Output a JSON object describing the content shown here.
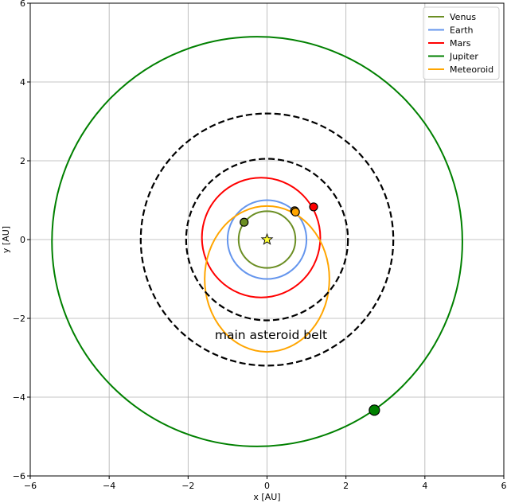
{
  "chart_data": {
    "type": "line",
    "title": "",
    "xlabel": "x [AU]",
    "ylabel": "y [AU]",
    "xlim": [
      -6,
      6
    ],
    "ylim": [
      -6,
      6
    ],
    "xticks": [
      -6,
      -4,
      -2,
      0,
      2,
      4,
      6
    ],
    "yticks": [
      -6,
      -4,
      -2,
      0,
      2,
      4,
      6
    ],
    "xtick_labels": [
      "−6",
      "−4",
      "−2",
      "0",
      "2",
      "4",
      "6"
    ],
    "ytick_labels": [
      "−6",
      "−4",
      "−2",
      "0",
      "2",
      "4",
      "6"
    ],
    "grid": true,
    "legend_position": "top-right",
    "series": [
      {
        "name": "Venus",
        "color": "#6b8e23",
        "orbit": {
          "cx": 0.0,
          "cy": 0.0,
          "rx": 0.72,
          "ry": 0.72
        },
        "planet": {
          "x": -0.58,
          "y": 0.44,
          "size": "small"
        }
      },
      {
        "name": "Earth",
        "color": "#6495ed",
        "orbit": {
          "cx": 0.0,
          "cy": 0.0,
          "rx": 1.0,
          "ry": 1.0
        },
        "planet": {
          "x": 0.72,
          "y": 0.7,
          "size": "small",
          "fill": "#ffa500"
        }
      },
      {
        "name": "Mars",
        "color": "#ff0000",
        "orbit": {
          "cx": -0.15,
          "cy": 0.05,
          "rx": 1.5,
          "ry": 1.52
        },
        "planet": {
          "x": 1.18,
          "y": 0.83,
          "size": "small"
        }
      },
      {
        "name": "Jupiter",
        "color": "#008000",
        "orbit": {
          "cx": -0.25,
          "cy": -0.05,
          "rx": 5.2,
          "ry": 5.2
        },
        "planet": {
          "x": 2.72,
          "y": -4.33,
          "size": "large"
        }
      },
      {
        "name": "Meteoroid",
        "color": "#ffa500",
        "orbit": {
          "cx": 0.0,
          "cy": -1.0,
          "rx": 1.58,
          "ry": 1.85
        },
        "planet": {
          "x": 0.7,
          "y": 0.73,
          "size": "small"
        }
      }
    ],
    "belt_boundaries": [
      {
        "r": 2.05,
        "color": "#000000",
        "style": "dashed"
      },
      {
        "r": 3.2,
        "color": "#000000",
        "style": "dashed"
      }
    ],
    "sun": {
      "x": 0.0,
      "y": 0.0,
      "color": "#ffff33"
    },
    "annotations": [
      {
        "text": "main asteroid belt",
        "x": 0.1,
        "y": -2.42
      }
    ]
  }
}
